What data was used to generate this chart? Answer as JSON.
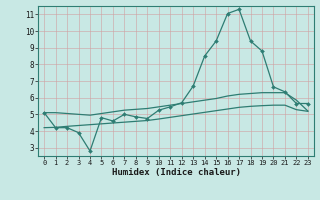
{
  "xlabel": "Humidex (Indice chaleur)",
  "xlim": [
    -0.5,
    23.5
  ],
  "ylim": [
    2.5,
    11.5
  ],
  "yticks": [
    3,
    4,
    5,
    6,
    7,
    8,
    9,
    10,
    11
  ],
  "xticks": [
    0,
    1,
    2,
    3,
    4,
    5,
    6,
    7,
    8,
    9,
    10,
    11,
    12,
    13,
    14,
    15,
    16,
    17,
    18,
    19,
    20,
    21,
    22,
    23
  ],
  "bg_color": "#c8e8e4",
  "grid_color": "#b0c8c4",
  "line_color": "#2e7d73",
  "main_x": [
    0,
    1,
    2,
    3,
    4,
    5,
    6,
    7,
    8,
    9,
    10,
    11,
    12,
    13,
    14,
    15,
    16,
    17,
    18,
    19,
    20,
    21,
    22,
    23
  ],
  "main_y": [
    5.1,
    4.2,
    4.2,
    3.9,
    2.8,
    4.8,
    4.6,
    5.0,
    4.85,
    4.75,
    5.25,
    5.45,
    5.7,
    6.7,
    8.5,
    9.4,
    11.05,
    11.3,
    9.4,
    8.8,
    6.65,
    6.35,
    5.65,
    5.65
  ],
  "trend1_x": [
    0,
    1,
    2,
    3,
    4,
    5,
    6,
    7,
    8,
    9,
    10,
    11,
    12,
    13,
    14,
    15,
    16,
    17,
    18,
    19,
    20,
    21,
    22,
    23
  ],
  "trend1_y": [
    5.1,
    5.1,
    5.05,
    5.0,
    4.95,
    5.05,
    5.15,
    5.25,
    5.3,
    5.35,
    5.45,
    5.55,
    5.65,
    5.75,
    5.85,
    5.95,
    6.1,
    6.2,
    6.25,
    6.3,
    6.3,
    6.3,
    5.85,
    5.2
  ],
  "trend2_x": [
    0,
    1,
    2,
    3,
    4,
    5,
    6,
    7,
    8,
    9,
    10,
    11,
    12,
    13,
    14,
    15,
    16,
    17,
    18,
    19,
    20,
    21,
    22,
    23
  ],
  "trend2_y": [
    4.2,
    4.22,
    4.28,
    4.33,
    4.38,
    4.43,
    4.48,
    4.53,
    4.58,
    4.63,
    4.72,
    4.82,
    4.92,
    5.02,
    5.12,
    5.22,
    5.32,
    5.42,
    5.48,
    5.52,
    5.55,
    5.55,
    5.28,
    5.18
  ]
}
